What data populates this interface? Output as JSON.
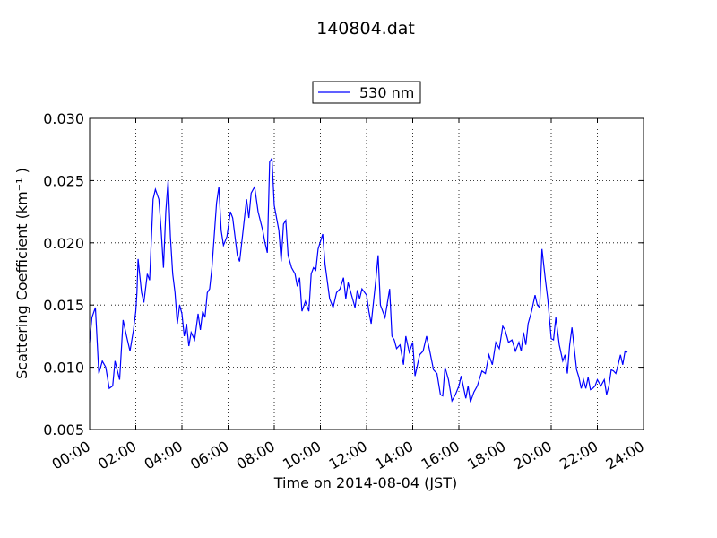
{
  "chart_data": {
    "type": "line",
    "title": "140804.dat",
    "xlabel": "Time on 2014-08-04 (JST)",
    "ylabel": "Scattering Coefficient (km⁻¹ )",
    "x": [
      0,
      0.1,
      0.25,
      0.4,
      0.55,
      0.7,
      0.85,
      1.0,
      1.1,
      1.3,
      1.45,
      1.6,
      1.75,
      1.9,
      2.0,
      2.05,
      2.1,
      2.25,
      2.35,
      2.5,
      2.6,
      2.75,
      2.85,
      3.0,
      3.1,
      3.2,
      3.3,
      3.4,
      3.5,
      3.6,
      3.7,
      3.8,
      3.9,
      4.0,
      4.1,
      4.2,
      4.3,
      4.4,
      4.55,
      4.7,
      4.8,
      4.9,
      5.0,
      5.1,
      5.2,
      5.3,
      5.5,
      5.6,
      5.7,
      5.8,
      5.95,
      6.1,
      6.2,
      6.4,
      6.5,
      6.65,
      6.8,
      6.9,
      7.0,
      7.15,
      7.3,
      7.5,
      7.6,
      7.7,
      7.8,
      7.9,
      8.0,
      8.2,
      8.3,
      8.4,
      8.5,
      8.6,
      8.75,
      8.9,
      9.0,
      9.1,
      9.2,
      9.35,
      9.5,
      9.6,
      9.7,
      9.8,
      9.9,
      10.1,
      10.2,
      10.4,
      10.55,
      10.7,
      10.85,
      11.0,
      11.1,
      11.2,
      11.35,
      11.5,
      11.6,
      11.7,
      11.8,
      12.0,
      12.1,
      12.2,
      12.4,
      12.5,
      12.6,
      12.8,
      13.0,
      13.1,
      13.2,
      13.3,
      13.45,
      13.6,
      13.7,
      13.85,
      14.0,
      14.1,
      14.3,
      14.45,
      14.6,
      14.75,
      14.9,
      15.05,
      15.2,
      15.3,
      15.4,
      15.55,
      15.7,
      15.85,
      16.0,
      16.1,
      16.3,
      16.4,
      16.5,
      16.65,
      16.8,
      17.0,
      17.15,
      17.3,
      17.45,
      17.6,
      17.75,
      17.9,
      18.0,
      18.15,
      18.3,
      18.45,
      18.6,
      18.7,
      18.8,
      18.9,
      19.0,
      19.15,
      19.3,
      19.4,
      19.5,
      19.6,
      19.75,
      19.85,
      20.0,
      20.1,
      20.2,
      20.35,
      20.5,
      20.6,
      20.7,
      20.8,
      20.9,
      21.0,
      21.1,
      21.2,
      21.3,
      21.4,
      21.5,
      21.6,
      21.7,
      21.8,
      21.9,
      22.0,
      22.15,
      22.3,
      22.4,
      22.5,
      22.6,
      22.7,
      22.8,
      22.9,
      23.0,
      23.1,
      23.2,
      23.3
    ],
    "series": [
      {
        "name": "530 nm",
        "color": "#0000ff",
        "values": [
          0.012,
          0.014,
          0.0148,
          0.0095,
          0.0105,
          0.01,
          0.0083,
          0.0085,
          0.0105,
          0.009,
          0.0138,
          0.0125,
          0.0113,
          0.013,
          0.0145,
          0.016,
          0.0187,
          0.016,
          0.0152,
          0.0175,
          0.017,
          0.0235,
          0.0243,
          0.0235,
          0.021,
          0.018,
          0.0225,
          0.025,
          0.0205,
          0.0175,
          0.016,
          0.0135,
          0.015,
          0.0143,
          0.0125,
          0.0135,
          0.0117,
          0.0128,
          0.0122,
          0.0143,
          0.013,
          0.0145,
          0.014,
          0.016,
          0.0163,
          0.018,
          0.0232,
          0.0245,
          0.021,
          0.0198,
          0.0205,
          0.0225,
          0.022,
          0.019,
          0.0185,
          0.021,
          0.0235,
          0.022,
          0.024,
          0.0245,
          0.0225,
          0.021,
          0.02,
          0.0192,
          0.0265,
          0.0268,
          0.023,
          0.021,
          0.0185,
          0.0215,
          0.0218,
          0.019,
          0.018,
          0.0175,
          0.0165,
          0.0172,
          0.0145,
          0.0153,
          0.0145,
          0.0175,
          0.018,
          0.0178,
          0.0195,
          0.0207,
          0.0183,
          0.0155,
          0.0148,
          0.016,
          0.0163,
          0.0172,
          0.0155,
          0.0168,
          0.0158,
          0.0148,
          0.0162,
          0.0155,
          0.0163,
          0.0158,
          0.0145,
          0.0135,
          0.017,
          0.019,
          0.015,
          0.014,
          0.0163,
          0.0125,
          0.0122,
          0.0115,
          0.0118,
          0.0102,
          0.0125,
          0.0112,
          0.012,
          0.0093,
          0.011,
          0.0113,
          0.0125,
          0.0112,
          0.0098,
          0.0095,
          0.0078,
          0.0077,
          0.01,
          0.009,
          0.0073,
          0.0078,
          0.0085,
          0.0093,
          0.0075,
          0.0085,
          0.0072,
          0.008,
          0.0085,
          0.0097,
          0.0095,
          0.011,
          0.0102,
          0.012,
          0.0115,
          0.0133,
          0.013,
          0.012,
          0.0122,
          0.0113,
          0.012,
          0.0113,
          0.0128,
          0.0118,
          0.0135,
          0.0145,
          0.0158,
          0.015,
          0.0148,
          0.0195,
          0.017,
          0.0155,
          0.0123,
          0.0122,
          0.014,
          0.0118,
          0.0105,
          0.011,
          0.0095,
          0.0118,
          0.0132,
          0.0115,
          0.0098,
          0.0092,
          0.0083,
          0.009,
          0.0083,
          0.0092,
          0.0082,
          0.0083,
          0.0085,
          0.009,
          0.0085,
          0.009,
          0.0078,
          0.0085,
          0.0098,
          0.0097,
          0.0095,
          0.0102,
          0.011,
          0.0102,
          0.0113,
          0.0112
        ]
      }
    ],
    "xlim": [
      0,
      24
    ],
    "xticks": [
      {
        "value": 0,
        "label": "00:00"
      },
      {
        "value": 2,
        "label": "02:00"
      },
      {
        "value": 4,
        "label": "04:00"
      },
      {
        "value": 6,
        "label": "06:00"
      },
      {
        "value": 8,
        "label": "08:00"
      },
      {
        "value": 10,
        "label": "10:00"
      },
      {
        "value": 12,
        "label": "12:00"
      },
      {
        "value": 14,
        "label": "14:00"
      },
      {
        "value": 16,
        "label": "16:00"
      },
      {
        "value": 18,
        "label": "18:00"
      },
      {
        "value": 20,
        "label": "20:00"
      },
      {
        "value": 22,
        "label": "22:00"
      },
      {
        "value": 24,
        "label": "24:00"
      }
    ],
    "ylim": [
      0.005,
      0.03
    ],
    "yticks": [
      0.005,
      {
        "value": 0.01,
        "label": "0.010"
      },
      0.015,
      {
        "value": 0.02,
        "label": "0.020"
      },
      0.025,
      {
        "value": 0.03,
        "label": "0.030"
      }
    ],
    "grid": true,
    "legend": "top"
  }
}
